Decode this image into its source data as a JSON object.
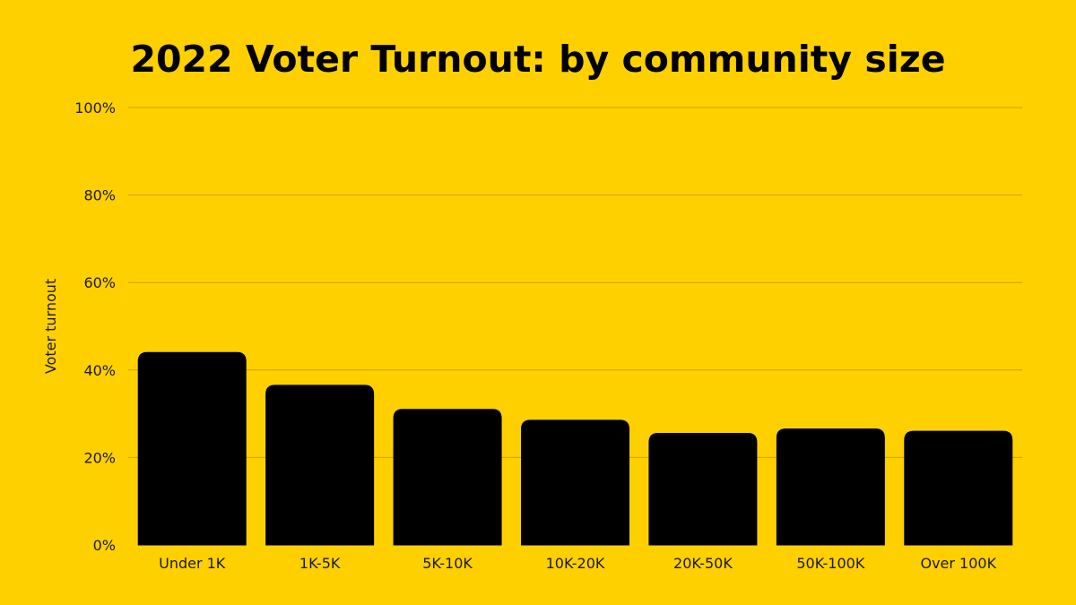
{
  "chart_data": {
    "type": "bar",
    "title": "2022 Voter Turnout: by community size",
    "xlabel": "",
    "ylabel": "Voter turnout",
    "categories": [
      "Under 1K",
      "1K-5K",
      "5K-10K",
      "10K-20K",
      "20K-50K",
      "50K-100K",
      "Over 100K"
    ],
    "values": [
      44,
      36.5,
      31,
      28.5,
      25.5,
      26.5,
      26
    ],
    "ylim": [
      0,
      100
    ],
    "yticks": [
      "0%",
      "20%",
      "40%",
      "60%",
      "80%",
      "100%"
    ],
    "ytick_values": [
      0,
      20,
      40,
      60,
      80,
      100
    ],
    "grid": true,
    "legend": "none"
  },
  "colors": {
    "background": "#FFD000",
    "bar": "#000000",
    "gridline": "#C9A200",
    "text": "#000000"
  }
}
